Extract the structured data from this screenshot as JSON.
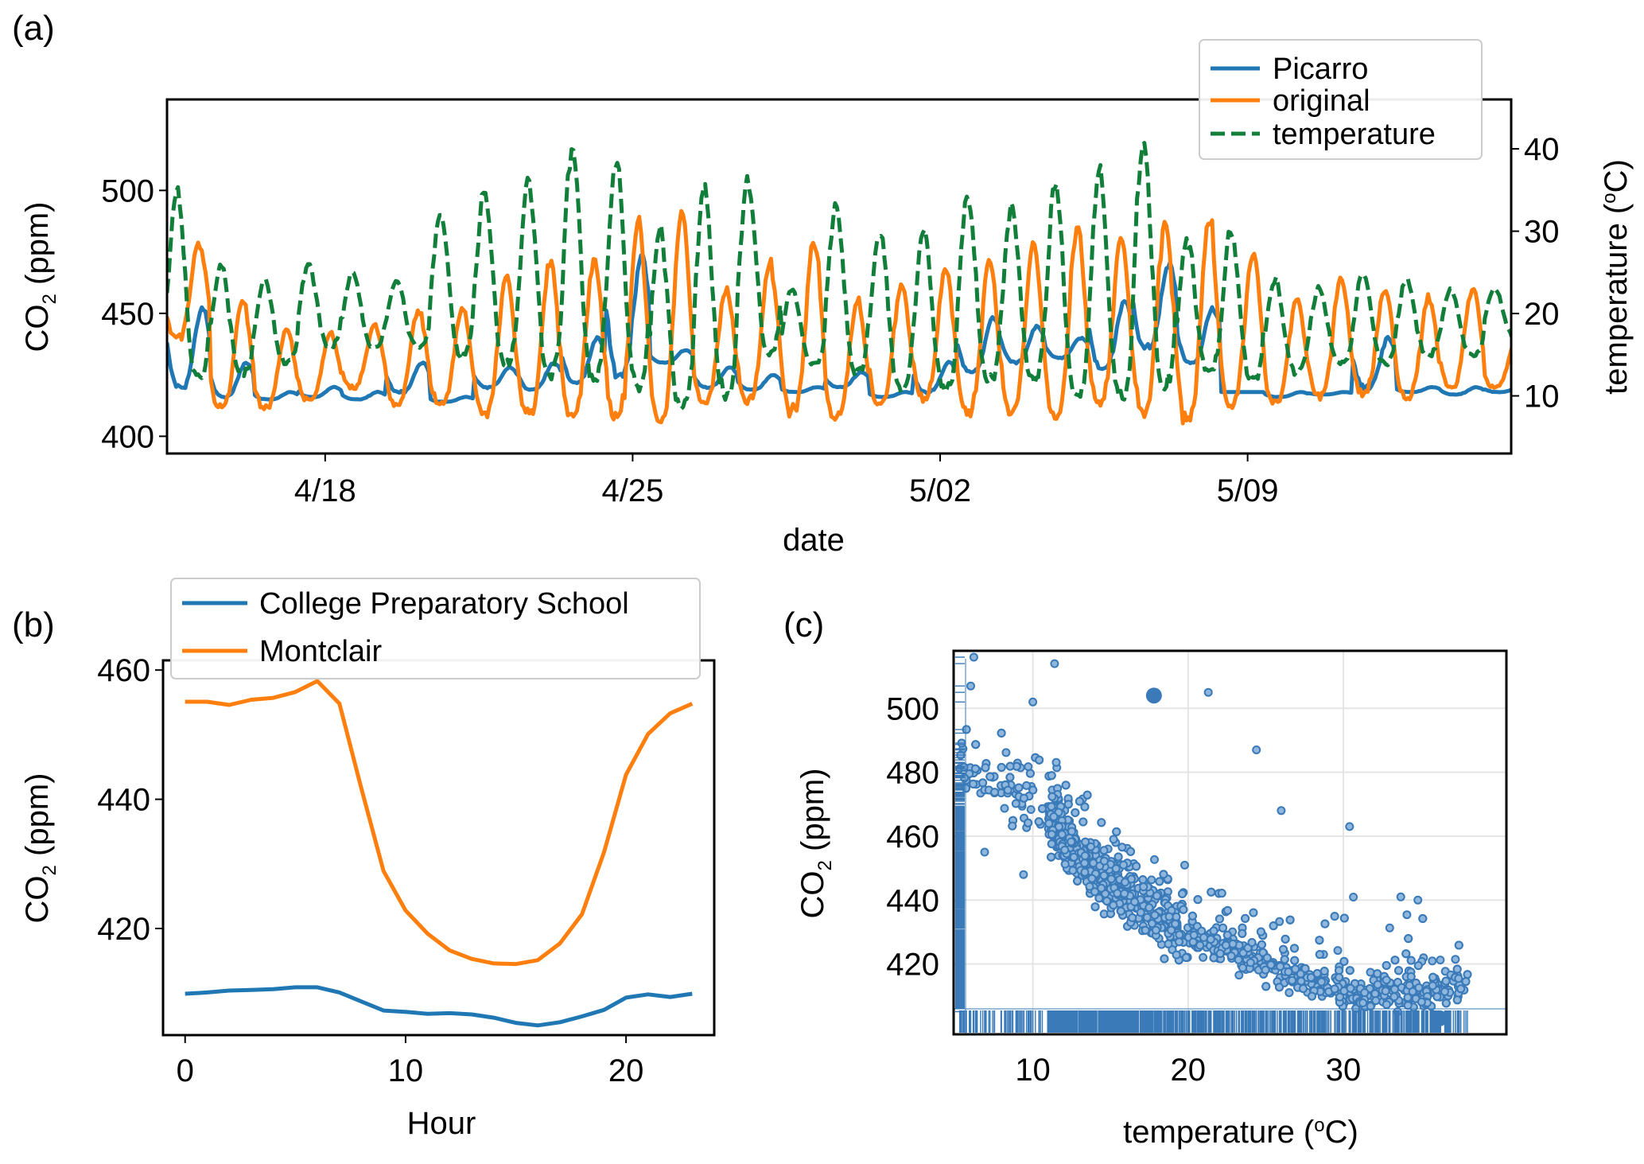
{
  "chart_data": [
    {
      "panel": "(a)",
      "type": "line",
      "title": "",
      "xlabel": "date",
      "ylabel": "CO2 (ppm)",
      "ylabel_right": "temperature (oC)",
      "x_ticks": [
        "4/18",
        "4/25",
        "5/02",
        "5/09"
      ],
      "x_tick_days": [
        18,
        25,
        32,
        39
      ],
      "xlim_days": [
        14.4,
        45.0
      ],
      "ylim": [
        393,
        537
      ],
      "y_ticks": [
        400,
        450,
        500
      ],
      "ylim_right": [
        3,
        46
      ],
      "y_ticks_right": [
        10,
        20,
        30,
        40
      ],
      "legend": {
        "placement": "top-right",
        "entries": [
          "Picarro",
          "original",
          "temperature"
        ]
      },
      "colors": {
        "Picarro": "#1f77b4",
        "original": "#ff7f0e",
        "temperature": "#117e3a"
      },
      "daily_cycle_note": "Series sampled per day as [day, nighttime max, daytime min]",
      "series": [
        {
          "name": "Picarro",
          "axis": "left",
          "daily_base": [
            420,
            416,
            415,
            416,
            415,
            418,
            414,
            420,
            419,
            422,
            425,
            430,
            420,
            419,
            418,
            420,
            416,
            418,
            426,
            430,
            432,
            428,
            436,
            430,
            418,
            416,
            417,
            420,
            418,
            417,
            418
          ],
          "daily_peak": [
            452,
            430,
            418,
            420,
            418,
            430,
            416,
            428,
            430,
            440,
            474,
            435,
            428,
            425,
            420,
            426,
            418,
            430,
            448,
            445,
            440,
            455,
            470,
            452,
            418,
            418,
            418,
            440,
            420,
            420,
            420
          ]
        },
        {
          "name": "original",
          "axis": "left",
          "daily_base": [
            440,
            412,
            412,
            415,
            420,
            413,
            413,
            410,
            410,
            408,
            408,
            407,
            414,
            414,
            411,
            408,
            414,
            415,
            410,
            410,
            408,
            414,
            410,
            408,
            413,
            414,
            416,
            418,
            416,
            420,
            420
          ],
          "daily_peak": [
            478,
            455,
            443,
            442,
            445,
            452,
            452,
            465,
            470,
            472,
            487,
            490,
            460,
            470,
            480,
            455,
            462,
            468,
            472,
            478,
            484,
            480,
            486,
            488,
            474,
            456,
            465,
            460,
            456,
            460,
            440
          ]
        },
        {
          "name": "temperature",
          "axis": "right",
          "daily_min": [
            12,
            13,
            14,
            16,
            16,
            16,
            15,
            14,
            13,
            12,
            11,
            9,
            10,
            15,
            14,
            13,
            11,
            11,
            12,
            12,
            10,
            10,
            11,
            13,
            12,
            13,
            14,
            14,
            15,
            15,
            17
          ],
          "daily_max": [
            35,
            26,
            24,
            26,
            25,
            24,
            32,
            35,
            36,
            40,
            39,
            30,
            35,
            36,
            23,
            33,
            30,
            30,
            34,
            33,
            36,
            37,
            41,
            29,
            30,
            24,
            23,
            25,
            24,
            23,
            23
          ]
        }
      ]
    },
    {
      "panel": "(b)",
      "type": "line",
      "title": "",
      "xlabel": "Hour",
      "ylabel": "CO2 (ppm)",
      "x": [
        0,
        1,
        2,
        3,
        4,
        5,
        6,
        7,
        8,
        9,
        10,
        11,
        12,
        13,
        14,
        15,
        16,
        17,
        18,
        19,
        20,
        21,
        22,
        23
      ],
      "x_ticks": [
        0,
        10,
        20
      ],
      "xlim": [
        -1,
        24
      ],
      "ylim": [
        403.5,
        461.5
      ],
      "y_ticks": [
        420,
        440,
        460
      ],
      "legend": {
        "placement": "top",
        "entries": [
          "College Preparatory School",
          "Montclair"
        ]
      },
      "colors": {
        "College Preparatory School": "#1f77b4",
        "Montclair": "#ff7f0e"
      },
      "series": [
        {
          "name": "College Preparatory School",
          "values": [
            409.9,
            410.1,
            410.4,
            410.5,
            410.6,
            410.9,
            410.9,
            410.1,
            408.7,
            407.3,
            407.1,
            406.8,
            406.9,
            406.7,
            406.2,
            405.4,
            405.0,
            405.5,
            406.4,
            407.4,
            409.3,
            409.8,
            409.4,
            409.9
          ]
        },
        {
          "name": "Montclair",
          "values": [
            455.1,
            455.1,
            454.6,
            455.4,
            455.7,
            456.6,
            458.3,
            454.8,
            441.6,
            428.9,
            422.8,
            419.2,
            416.6,
            415.3,
            414.6,
            414.5,
            415.1,
            417.7,
            422.2,
            431.8,
            443.8,
            450.1,
            453.3,
            454.8
          ]
        }
      ]
    },
    {
      "panel": "(c)",
      "type": "scatter",
      "title": "",
      "xlabel": "temperature (oC)",
      "ylabel": "CO2 (ppm)",
      "x_ticks": [
        10,
        20,
        30
      ],
      "y_ticks": [
        420,
        440,
        460,
        480,
        500
      ],
      "xlim": [
        4.9,
        40.5
      ],
      "ylim": [
        398,
        518
      ],
      "grid": true,
      "rug_plot": true,
      "color": "#3a7ab8",
      "trend_note": "Approximate fitted trend of point cloud: CO2 decreases with temperature",
      "trend": [
        {
          "x": 5,
          "y": 482
        },
        {
          "x": 10,
          "y": 470
        },
        {
          "x": 15,
          "y": 444
        },
        {
          "x": 20,
          "y": 430
        },
        {
          "x": 25,
          "y": 420
        },
        {
          "x": 30,
          "y": 411
        },
        {
          "x": 35,
          "y": 411
        },
        {
          "x": 40,
          "y": 416
        }
      ],
      "highlighted_points": [
        {
          "x": 17.8,
          "y": 504
        },
        {
          "x": 36.2,
          "y": 403
        }
      ],
      "outliers": [
        {
          "x": 6.2,
          "y": 516
        },
        {
          "x": 11.4,
          "y": 514
        },
        {
          "x": 6.0,
          "y": 507
        },
        {
          "x": 21.3,
          "y": 505
        },
        {
          "x": 10.0,
          "y": 502
        },
        {
          "x": 30.4,
          "y": 463
        },
        {
          "x": 26.0,
          "y": 468
        },
        {
          "x": 24.4,
          "y": 487
        },
        {
          "x": 33.7,
          "y": 441
        },
        {
          "x": 34.8,
          "y": 440
        },
        {
          "x": 9.4,
          "y": 448
        },
        {
          "x": 6.9,
          "y": 455
        }
      ]
    }
  ],
  "panel_labels": [
    "(a)",
    "(b)",
    "(c)"
  ]
}
